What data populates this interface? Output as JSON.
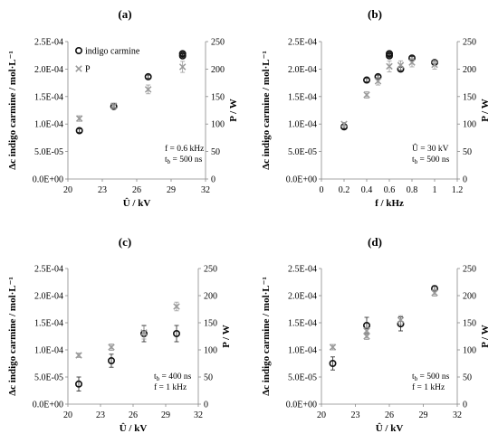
{
  "chart_data": [
    {
      "panel": "(a)",
      "type": "scatter",
      "xlabel": "Û / kV",
      "ylabel": "Δc indigo carmine / mol·L⁻¹",
      "y2label": "P / W",
      "xlim": [
        20,
        32
      ],
      "xticks": [
        "20",
        "23",
        "26",
        "29",
        "32"
      ],
      "xtick_values": [
        20,
        23,
        26,
        29,
        32
      ],
      "ylim": [
        0,
        0.00025
      ],
      "yticks": [
        "0.0E+00",
        "5.0E-05",
        "1.0E-04",
        "1.5E-04",
        "2.0E-04",
        "2.5E-04"
      ],
      "y2lim": [
        0,
        250
      ],
      "y2ticks": [
        "0",
        "50",
        "100",
        "150",
        "200",
        "250"
      ],
      "legend": {
        "position": "top-left",
        "entries": [
          "indigo carmine",
          "P"
        ]
      },
      "annotations": [
        "f = 0.6 kHz",
        "t",
        "b",
        " = 500 ns"
      ],
      "series": [
        {
          "name": "indigo carmine",
          "marker": "circle",
          "axis": "left",
          "x": [
            21,
            24,
            27,
            30,
            30
          ],
          "y": [
            8.8e-05,
            0.000132,
            0.000186,
            0.000224,
            0.000228
          ],
          "err": [
            3e-06,
            3e-06,
            3e-06,
            3e-06,
            3e-06
          ]
        },
        {
          "name": "P",
          "marker": "x",
          "axis": "right",
          "x": [
            21,
            24,
            27,
            30
          ],
          "y": [
            110,
            133,
            163,
            204
          ],
          "err": [
            5,
            5,
            8,
            10
          ]
        }
      ]
    },
    {
      "panel": "(b)",
      "type": "scatter",
      "xlabel": "f / kHz",
      "ylabel": "Δc indigo carmine / mol·L⁻¹",
      "y2label": "P / W",
      "xlim": [
        0,
        1.2
      ],
      "xticks": [
        "0",
        "0.2",
        "0.4",
        "0.6",
        "0.8",
        "1",
        "1.2"
      ],
      "xtick_values": [
        0,
        0.2,
        0.4,
        0.6,
        0.8,
        1,
        1.2
      ],
      "ylim": [
        0,
        0.00025
      ],
      "yticks": [
        "0.0E+00",
        "5.0E-05",
        "1.0E-04",
        "1.5E-04",
        "2.0E-04",
        "2.5E-04"
      ],
      "y2lim": [
        0,
        250
      ],
      "y2ticks": [
        "0",
        "50",
        "100",
        "150",
        "200",
        "250"
      ],
      "annotations": [
        "Û = 30 kV",
        "t",
        "b",
        " = 500 ns"
      ],
      "series": [
        {
          "name": "indigo carmine",
          "marker": "circle",
          "axis": "left",
          "x": [
            0.2,
            0.4,
            0.5,
            0.6,
            0.6,
            0.7,
            0.8,
            1.0
          ],
          "y": [
            9.5e-05,
            0.00018,
            0.000186,
            0.000224,
            0.000228,
            0.0002,
            0.00022,
            0.000212
          ],
          "err": [
            3e-06,
            3e-06,
            3e-06,
            3e-06,
            3e-06,
            3e-06,
            3e-06,
            3e-06
          ]
        },
        {
          "name": "P",
          "marker": "x",
          "axis": "right",
          "x": [
            0.2,
            0.4,
            0.5,
            0.6,
            0.7,
            0.8,
            1.0
          ],
          "y": [
            100,
            153,
            178,
            205,
            207,
            212,
            208
          ],
          "err": [
            3,
            6,
            7,
            10,
            8,
            8,
            8
          ]
        }
      ]
    },
    {
      "panel": "(c)",
      "type": "scatter",
      "xlabel": "Û / kV",
      "ylabel": "Δc indigo carmine / mol·L⁻¹",
      "y2label": "P / W",
      "xlim": [
        20,
        32
      ],
      "xticks": [
        "20",
        "23",
        "26",
        "29",
        "32"
      ],
      "xtick_values": [
        20,
        23,
        26,
        29,
        32
      ],
      "ylim": [
        0,
        0.00025
      ],
      "yticks": [
        "0.0E+00",
        "5.0E-05",
        "1.0E-04",
        "1.5E-04",
        "2.0E-04",
        "2.5E-04"
      ],
      "y2lim": [
        0,
        250
      ],
      "y2ticks": [
        "0",
        "50",
        "100",
        "150",
        "200",
        "250"
      ],
      "annotations": [
        "t",
        "b",
        " = 400 ns",
        "f = 1 kHz"
      ],
      "series": [
        {
          "name": "indigo carmine",
          "marker": "circle",
          "axis": "left",
          "x": [
            21,
            24,
            27,
            30
          ],
          "y": [
            3.7e-05,
            8e-05,
            0.00013,
            0.00013
          ],
          "err": [
            1.3e-05,
            1.2e-05,
            1.5e-05,
            1.5e-05
          ]
        },
        {
          "name": "P",
          "marker": "x",
          "axis": "right",
          "x": [
            21,
            24,
            27,
            30
          ],
          "y": [
            90,
            105,
            132,
            180
          ],
          "err": [
            4,
            6,
            12,
            8
          ]
        }
      ]
    },
    {
      "panel": "(d)",
      "type": "scatter",
      "xlabel": "Û / kV",
      "ylabel": "Δc indigo carmine / mol·L⁻¹",
      "y2label": "P / W",
      "xlim": [
        20,
        32
      ],
      "xticks": [
        "20",
        "23",
        "26",
        "29",
        "32"
      ],
      "xtick_values": [
        20,
        23,
        26,
        29,
        32
      ],
      "ylim": [
        0,
        0.00025
      ],
      "yticks": [
        "0.0E+00",
        "5.0E-05",
        "1.0E-04",
        "1.5E-04",
        "2.0E-04",
        "2.5E-04"
      ],
      "y2lim": [
        0,
        250
      ],
      "y2ticks": [
        "0",
        "50",
        "100",
        "150",
        "200",
        "250"
      ],
      "annotations": [
        "t",
        "b",
        " = 500 ns",
        "f = 1 kHz"
      ],
      "series": [
        {
          "name": "indigo carmine",
          "marker": "circle",
          "axis": "left",
          "x": [
            21,
            24,
            27,
            30
          ],
          "y": [
            7.5e-05,
            0.000145,
            0.000148,
            0.000213
          ],
          "err": [
            1.2e-05,
            1.5e-05,
            1.3e-05,
            5e-06
          ]
        },
        {
          "name": "P",
          "marker": "x",
          "axis": "right",
          "x": [
            21,
            24,
            24,
            27,
            30
          ],
          "y": [
            105,
            125,
            135,
            155,
            205
          ],
          "err": [
            5,
            6,
            6,
            8,
            6
          ]
        }
      ]
    }
  ]
}
